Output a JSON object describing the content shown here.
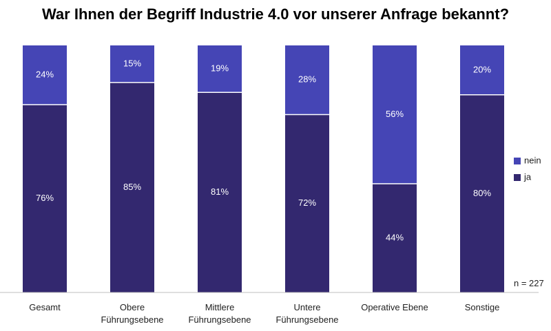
{
  "chart_data": {
    "type": "bar",
    "stacked": true,
    "title": "War Ihnen der Begriff Industrie 4.0 vor unserer Anfrage bekannt?",
    "categories": [
      [
        "Gesamt"
      ],
      [
        "Obere",
        "Führungsebene"
      ],
      [
        "Mittlere",
        "Führungsebene"
      ],
      [
        "Untere",
        "Führungsebene"
      ],
      [
        "Operative Ebene"
      ],
      [
        "Sonstige"
      ]
    ],
    "series": [
      {
        "name": "ja",
        "color": "#33286f",
        "values": [
          76,
          85,
          81,
          72,
          44,
          80
        ]
      },
      {
        "name": "nein",
        "color": "#4545b5",
        "values": [
          24,
          15,
          19,
          28,
          56,
          20
        ]
      }
    ],
    "value_suffix": "%",
    "ylim": [
      0,
      100
    ],
    "grid": false,
    "legend": {
      "placement": "right",
      "order": [
        "nein",
        "ja"
      ]
    },
    "annotation": "n = 227"
  }
}
